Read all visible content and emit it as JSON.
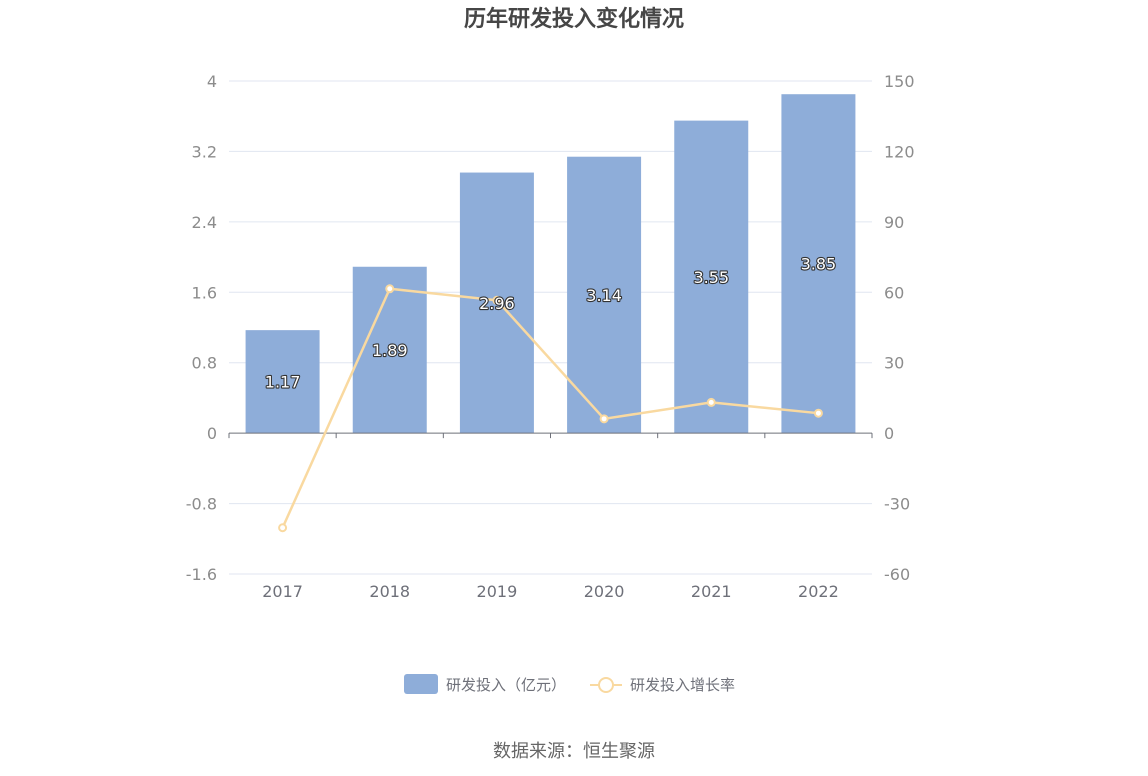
{
  "chart_data": {
    "type": "bar",
    "title": "历年研发投入变化情况",
    "categories": [
      "2017",
      "2018",
      "2019",
      "2020",
      "2021",
      "2022"
    ],
    "series": [
      {
        "name": "研发投入（亿元）",
        "type": "bar",
        "axis": "left",
        "values": [
          1.17,
          1.89,
          2.96,
          3.14,
          3.55,
          3.85
        ],
        "labels": [
          "1.17",
          "1.89",
          "2.96",
          "3.14",
          "3.55",
          "3.85"
        ],
        "color": "#8eadd9"
      },
      {
        "name": "研发投入增长率",
        "type": "line",
        "axis": "right",
        "values": [
          -40.3,
          61.5,
          56.6,
          6.1,
          13.1,
          8.5
        ],
        "color": "#f9d9a0"
      }
    ],
    "left_axis": {
      "min": -1.6,
      "max": 4,
      "ticks": [
        "4",
        "3.2",
        "2.4",
        "1.6",
        "0.8",
        "0",
        "-0.8",
        "-1.6"
      ]
    },
    "right_axis": {
      "min": -60,
      "max": 150,
      "ticks": [
        "150",
        "120",
        "90",
        "60",
        "30",
        "0",
        "-30",
        "-60"
      ]
    },
    "grid": true,
    "legend_position": "bottom"
  },
  "source_text": "数据来源：恒生聚源"
}
